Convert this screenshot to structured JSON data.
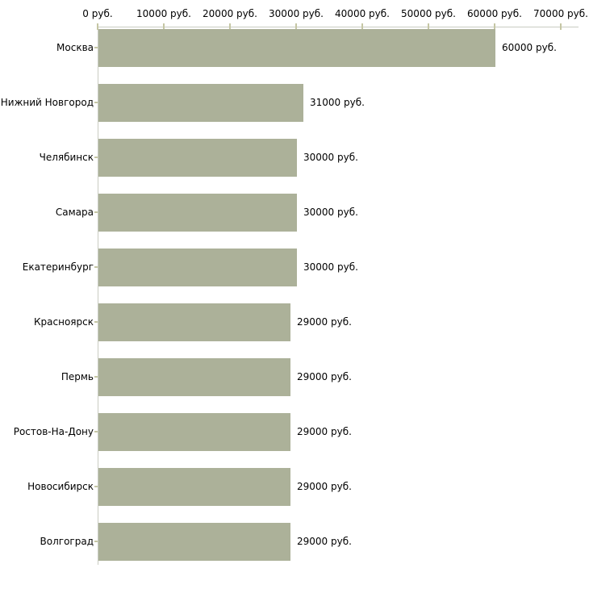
{
  "chart_data": {
    "type": "bar",
    "orientation": "horizontal",
    "title": "",
    "xlabel": "",
    "ylabel": "",
    "xlim": [
      0,
      70000
    ],
    "grid": false,
    "legend": null,
    "x_tick_labels": [
      "0 руб.",
      "10000 руб.",
      "20000 руб.",
      "30000 руб.",
      "40000 руб.",
      "50000 руб.",
      "60000 руб.",
      "70000 руб."
    ],
    "x_tick_values": [
      0,
      10000,
      20000,
      30000,
      40000,
      50000,
      60000,
      70000
    ],
    "categories": [
      "Москва",
      "Нижний Новгород",
      "Челябинск",
      "Самара",
      "Екатеринбург",
      "Красноярск",
      "Пермь",
      "Ростов-На-Дону",
      "Новосибирск",
      "Волгоград"
    ],
    "values": [
      60000,
      31000,
      30000,
      30000,
      30000,
      29000,
      29000,
      29000,
      29000,
      29000
    ],
    "value_labels": [
      "60000 руб.",
      "31000 руб.",
      "30000 руб.",
      "30000 руб.",
      "30000 руб.",
      "29000 руб.",
      "29000 руб.",
      "29000 руб.",
      "29000 руб.",
      "29000 руб."
    ],
    "colors": {
      "bar": "#acb199",
      "axis_line": "#c9ccc2",
      "tick_mark": "#c5c6a4",
      "text": "#000000",
      "background": "#ffffff"
    }
  }
}
